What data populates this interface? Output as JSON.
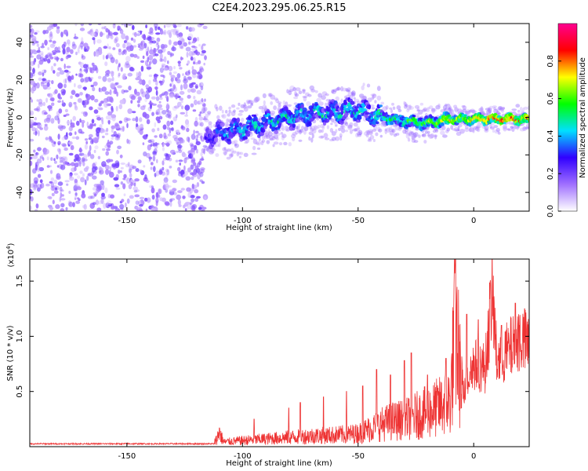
{
  "title": "C2E4.2023.295.06.25.R15",
  "chart_data": [
    {
      "type": "heatmap",
      "title": "C2E4.2023.295.06.25.R15",
      "xlabel": "Height of straight line (km)",
      "ylabel": "Frequency (Hz)",
      "xlim": [
        -192,
        24
      ],
      "ylim": [
        -50,
        50
      ],
      "x_ticks": [
        "-150",
        "-100",
        "-50",
        "0"
      ],
      "y_ticks": [
        "40",
        "20",
        "0",
        "-20",
        "-40"
      ],
      "noise_region": {
        "x": [
          -192,
          -116
        ],
        "y": [
          -50,
          50
        ],
        "level": 0.15
      },
      "signal_trace": {
        "x": [
          -116,
          -110,
          -100,
          -90,
          -80,
          -70,
          -60,
          -50,
          -45,
          -40,
          -30,
          -20,
          -10,
          0,
          10,
          24
        ],
        "frequency": [
          -10,
          -8,
          -6,
          -3,
          0,
          2,
          3,
          4,
          2,
          0,
          -2,
          -3,
          -1,
          -1,
          -1,
          -1
        ],
        "amplitude": [
          0.25,
          0.35,
          0.4,
          0.45,
          0.45,
          0.45,
          0.45,
          0.45,
          0.4,
          0.5,
          0.55,
          0.6,
          0.7,
          0.75,
          0.9,
          0.8
        ]
      },
      "colorbar": {
        "label": "Normalized spectral amplitude",
        "range": [
          0,
          1
        ],
        "ticks": [
          "0.0",
          "0.2",
          "0.4",
          "0.6",
          "0.8"
        ],
        "colors": [
          "#ffffff",
          "#a070ff",
          "#3000ff",
          "#00e0ff",
          "#00ff00",
          "#ffff00",
          "#ff0000",
          "#ff0090"
        ]
      },
      "grid": false
    },
    {
      "type": "line",
      "xlabel": "Height of straight line (km)",
      "ylabel": "SNR (10 * v/v)",
      "y_multiplier": "(x10",
      "y_multiplier_exp": "4",
      "y_multiplier_close": ")",
      "xlim": [
        -192,
        24
      ],
      "ylim": [
        0,
        17000
      ],
      "x_ticks": [
        "-150",
        "-100",
        "-50",
        "0"
      ],
      "y_ticks": [
        "1.5",
        "1.0",
        "0.5"
      ],
      "series": [
        {
          "color": "#ee3333",
          "x": [
            -192,
            -160,
            -130,
            -116,
            -112,
            -110,
            -108,
            -100,
            -90,
            -80,
            -70,
            -60,
            -50,
            -45,
            -40,
            -35,
            -30,
            -25,
            -20,
            -15,
            -10,
            -8,
            -5,
            0,
            5,
            8,
            10,
            15,
            20,
            24
          ],
          "y": [
            200,
            200,
            250,
            300,
            600,
            1700,
            600,
            800,
            1000,
            1200,
            1400,
            1500,
            1700,
            2300,
            2900,
            3300,
            3500,
            4000,
            4500,
            5100,
            6000,
            16500,
            6500,
            9000,
            8700,
            17000,
            9500,
            10500,
            12000,
            11000
          ],
          "spikes": [
            [
              -110,
              1700
            ],
            [
              -95,
              2500
            ],
            [
              -80,
              3500
            ],
            [
              -75,
              4000
            ],
            [
              -65,
              4500
            ],
            [
              -55,
              5000
            ],
            [
              -48,
              5500
            ],
            [
              -42,
              7000
            ],
            [
              -36,
              6500
            ],
            [
              -30,
              7800
            ],
            [
              -27,
              8500
            ],
            [
              -20,
              6500
            ],
            [
              -12,
              8000
            ],
            [
              -8,
              16500
            ],
            [
              -3,
              12000
            ],
            [
              2,
              11500
            ],
            [
              8,
              17000
            ],
            [
              12,
              11000
            ],
            [
              18,
              13000
            ],
            [
              22,
              12500
            ]
          ]
        }
      ],
      "grid": false
    }
  ]
}
